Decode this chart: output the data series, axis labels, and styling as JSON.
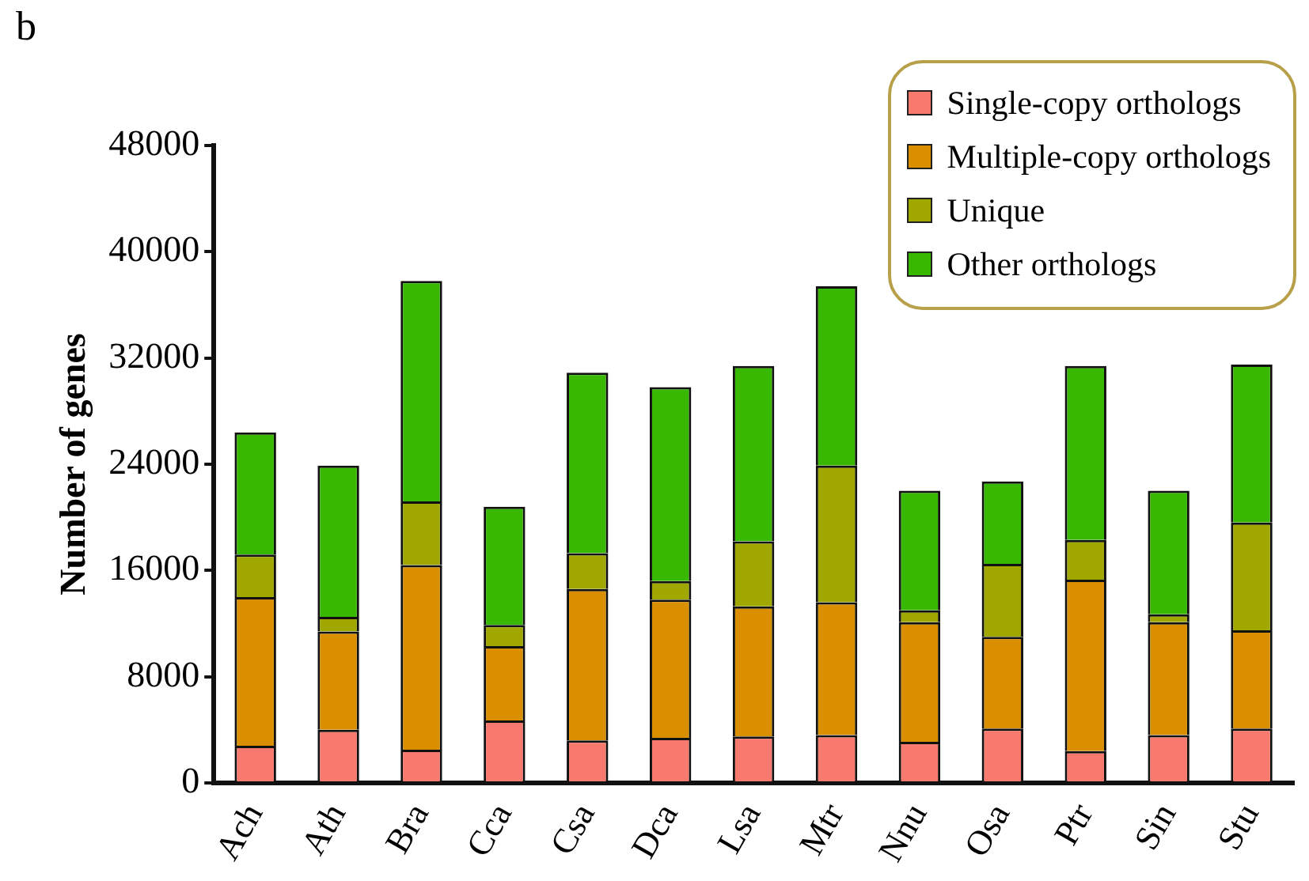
{
  "chart_data": {
    "type": "bar",
    "stacked": true,
    "ylabel": "Number of genes",
    "annotations": [
      "b"
    ],
    "categories": [
      "Ach",
      "Ath",
      "Bra",
      "Cca",
      "Csa",
      "Dca",
      "Lsa",
      "Mtr",
      "Nnu",
      "Osa",
      "Ptr",
      "Sin",
      "Stu"
    ],
    "series": [
      {
        "name": "Single-copy orthologs",
        "color": "#f87a6e",
        "values": [
          2800,
          4000,
          2500,
          4700,
          3200,
          3400,
          3500,
          3600,
          3100,
          4100,
          2400,
          3600,
          4100
        ]
      },
      {
        "name": "Multiple-copy orthologs",
        "color": "#d98f00",
        "values": [
          11200,
          7400,
          13900,
          5600,
          11400,
          10400,
          9800,
          10000,
          9000,
          6900,
          12900,
          8500,
          7400
        ]
      },
      {
        "name": "Unique",
        "color": "#a0a800",
        "values": [
          3200,
          1100,
          4800,
          1600,
          2700,
          1400,
          4900,
          10300,
          900,
          5500,
          3000,
          600,
          8100
        ]
      },
      {
        "name": "Other orthologs",
        "color": "#38b800",
        "values": [
          9200,
          11400,
          16600,
          8900,
          13600,
          14600,
          13200,
          13500,
          9000,
          6200,
          13100,
          9300,
          11900
        ]
      }
    ],
    "ylim": [
      0,
      48000
    ],
    "yticks": [
      0,
      8000,
      16000,
      24000,
      32000,
      40000,
      48000
    ],
    "grid": false,
    "legend": "top right"
  }
}
